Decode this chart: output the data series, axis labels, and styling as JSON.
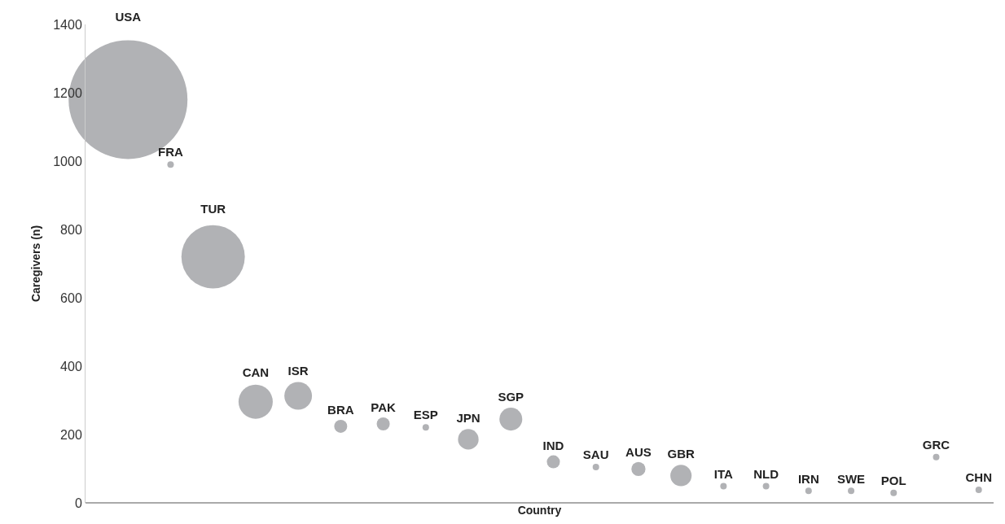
{
  "chart_data": {
    "type": "bubble",
    "xlabel": "Country",
    "ylabel": "Caregivers (n)",
    "categories": [
      "USA",
      "FRA",
      "TUR",
      "CAN",
      "ISR",
      "BRA",
      "PAK",
      "ESP",
      "JPN",
      "SGP",
      "IND",
      "SAU",
      "AUS",
      "GBR",
      "ITA",
      "NLD",
      "IRN",
      "SWE",
      "POL",
      "GRC",
      "CHN"
    ],
    "values": [
      1180,
      990,
      720,
      296,
      313,
      224,
      231,
      221,
      186,
      245,
      120,
      105,
      99,
      80,
      49,
      49,
      35,
      35,
      29,
      134,
      38
    ],
    "sizes": [
      1,
      0.003,
      0.285,
      0.083,
      0.054,
      0.012,
      0.012,
      0.003,
      0.03,
      0.037,
      0.012,
      0.003,
      0.014,
      0.032,
      0.003,
      0.003,
      0.003,
      0.003,
      0.003,
      0.003,
      0.003
    ],
    "color": "#b1b2b5",
    "ylim": [
      0,
      1400
    ],
    "yticks": [
      0,
      200,
      400,
      600,
      800,
      1000,
      1200,
      1400
    ]
  }
}
